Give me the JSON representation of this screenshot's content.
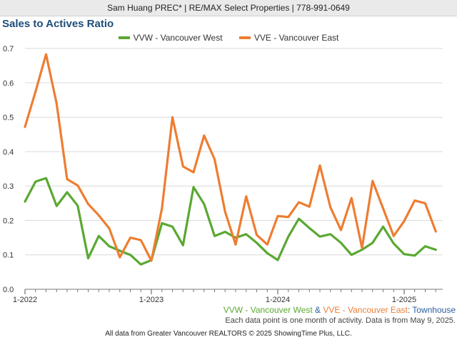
{
  "header": {
    "banner": "Sam Huang PREC* | RE/MAX Select Properties | 778-991-0649"
  },
  "colors": {
    "vvw": "#5aa832",
    "vve": "#ee7d32",
    "title": "#1f4e79",
    "property_type": "#2a5f9e"
  },
  "chart_data": {
    "type": "line",
    "title": "Sales to Actives Ratio",
    "xlabel": "",
    "ylabel": "",
    "ylim": [
      0,
      0.7
    ],
    "yticks": [
      "0.0",
      "0.1",
      "0.2",
      "0.3",
      "0.4",
      "0.5",
      "0.6",
      "0.7"
    ],
    "xticks": [
      "1-2022",
      "1-2023",
      "1-2024",
      "1-2025"
    ],
    "x_start": "2022-01",
    "x_end": "2025-04",
    "grid": true,
    "legend_position": "top-center",
    "series": [
      {
        "name": "VVW - Vancouver West",
        "color": "#5aa832",
        "values": [
          0.255,
          0.313,
          0.323,
          0.242,
          0.282,
          0.243,
          0.09,
          0.155,
          0.125,
          0.112,
          0.1,
          0.072,
          0.085,
          0.192,
          0.182,
          0.128,
          0.297,
          0.248,
          0.155,
          0.167,
          0.15,
          0.16,
          0.135,
          0.105,
          0.085,
          0.153,
          0.205,
          0.178,
          0.153,
          0.16,
          0.135,
          0.1,
          0.115,
          0.135,
          0.182,
          0.133,
          0.102,
          0.098,
          0.125,
          0.115
        ]
      },
      {
        "name": "VVE - Vancouver East",
        "color": "#ee7d32",
        "values": [
          0.472,
          0.575,
          0.683,
          0.54,
          0.32,
          0.302,
          0.248,
          0.215,
          0.177,
          0.093,
          0.15,
          0.143,
          0.083,
          0.235,
          0.5,
          0.357,
          0.34,
          0.447,
          0.378,
          0.225,
          0.13,
          0.27,
          0.158,
          0.13,
          0.213,
          0.21,
          0.253,
          0.24,
          0.36,
          0.238,
          0.172,
          0.265,
          0.12,
          0.315,
          0.235,
          0.155,
          0.198,
          0.258,
          0.25,
          0.168
        ]
      }
    ]
  },
  "bottom_legend": {
    "vvw": "VVW - Vancouver West",
    "amp": " & ",
    "vve": "VVE - Vancouver East",
    "colon": ": ",
    "type": "Townhouse"
  },
  "note": "Each data point is one month of activity. Data is from May 9, 2025.",
  "footer": "All data from Greater Vancouver REALTORS © 2025 ShowingTime Plus, LLC."
}
